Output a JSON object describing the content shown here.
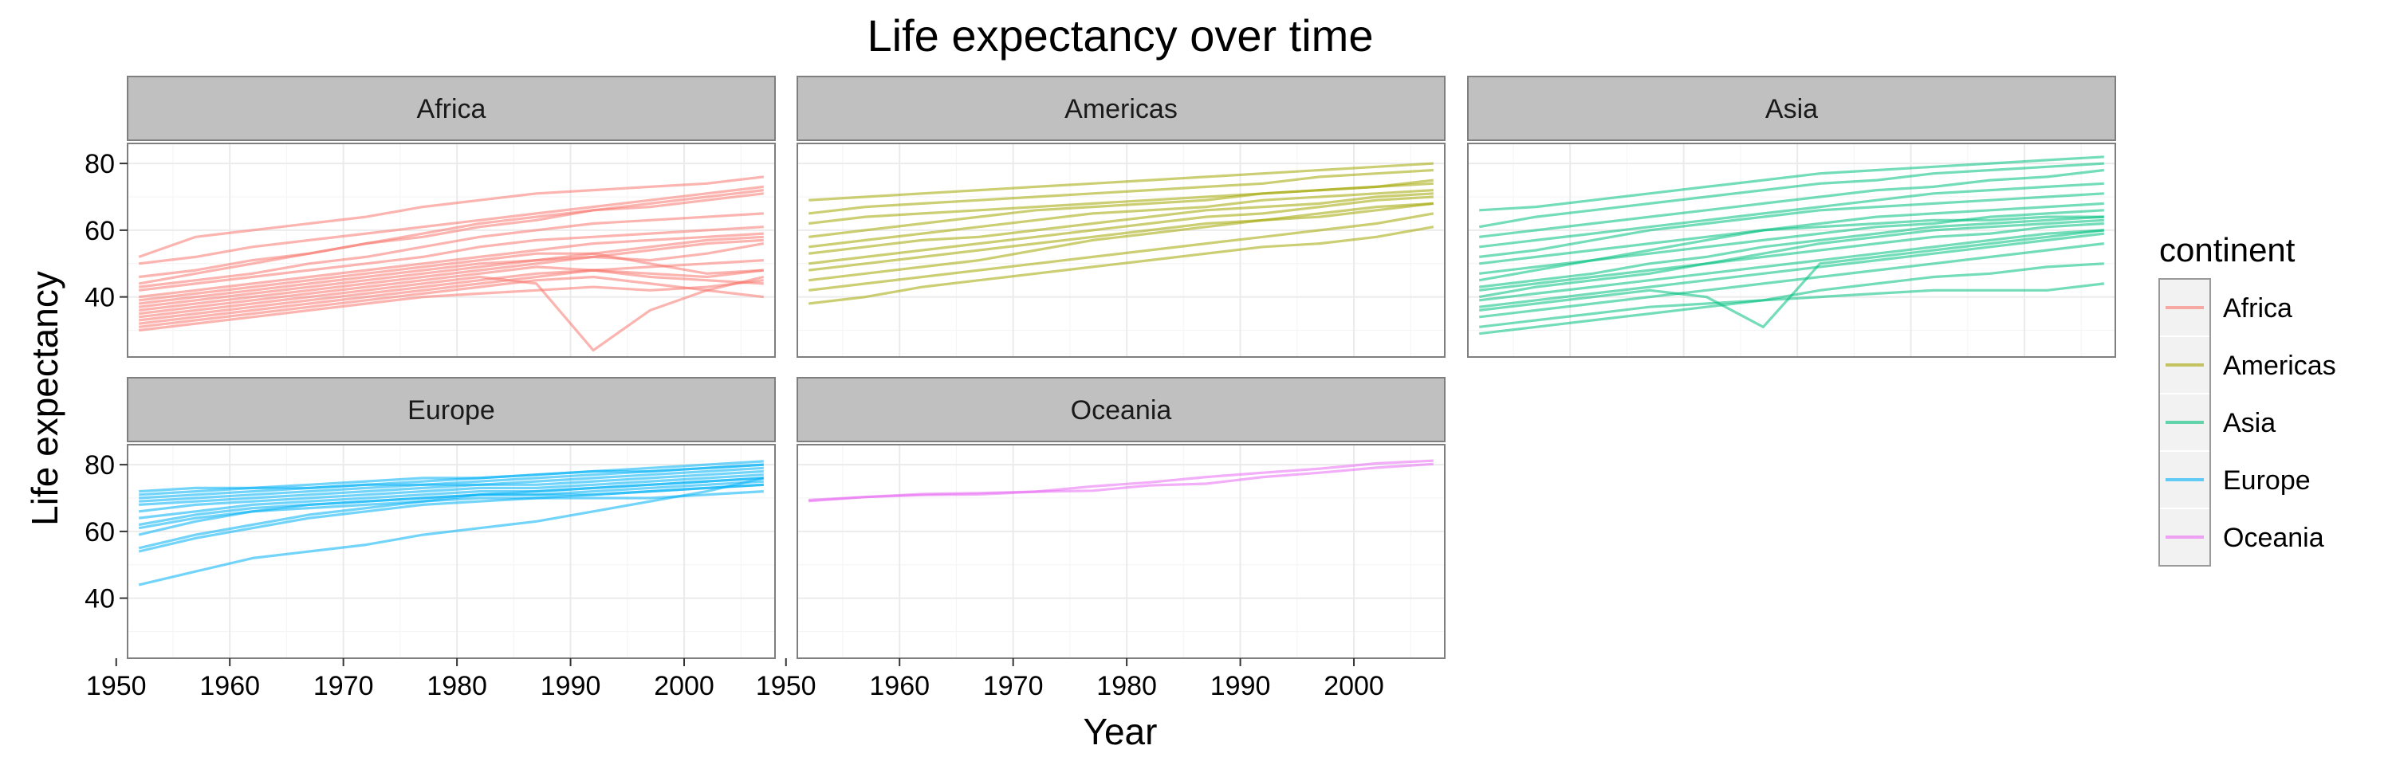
{
  "chart_data": {
    "type": "line",
    "title": "Life expectancy over time",
    "xlabel": "Year",
    "ylabel": "Life expectancy",
    "x": [
      1952,
      1957,
      1962,
      1967,
      1972,
      1977,
      1982,
      1987,
      1992,
      1997,
      2002,
      2007
    ],
    "xlim": [
      1951,
      2008
    ],
    "ylim": [
      22,
      86
    ],
    "x_ticks": [
      1950,
      1960,
      1970,
      1980,
      1990,
      2000
    ],
    "y_ticks": [
      40,
      60,
      80
    ],
    "grid": true,
    "facet_by": "continent",
    "legend": {
      "title": "continent",
      "position": "right",
      "entries": [
        "Africa",
        "Americas",
        "Asia",
        "Europe",
        "Oceania"
      ]
    },
    "colors": {
      "Africa": "#F8766D",
      "Americas": "#A3A500",
      "Asia": "#00BF7D",
      "Europe": "#00B0F6",
      "Oceania": "#E76BF3"
    },
    "panels": [
      {
        "continent": "Africa",
        "series": [
          {
            "values": [
              52,
              58,
              60,
              62,
              64,
              67,
              69,
              71,
              72,
              73,
              74,
              76
            ]
          },
          {
            "values": [
              50,
              52,
              55,
              57,
              59,
              61,
              63,
              65,
              67,
              69,
              71,
              73
            ]
          },
          {
            "values": [
              46,
              48,
              51,
              53,
              56,
              58,
              61,
              63,
              66,
              68,
              70,
              72
            ]
          },
          {
            "values": [
              44,
              47,
              50,
              53,
              56,
              59,
              62,
              64,
              66,
              67,
              69,
              71
            ]
          },
          {
            "values": [
              43,
              45,
              47,
              50,
              52,
              55,
              58,
              60,
              62,
              63,
              64,
              65
            ]
          },
          {
            "values": [
              42,
              44,
              46,
              48,
              50,
              52,
              55,
              57,
              58,
              59,
              60,
              61
            ]
          },
          {
            "values": [
              40,
              42,
              44,
              46,
              48,
              50,
              52,
              54,
              56,
              57,
              58,
              59
            ]
          },
          {
            "values": [
              39,
              41,
              43,
              45,
              47,
              49,
              51,
              53,
              53,
              50,
              47,
              48
            ]
          },
          {
            "values": [
              38,
              40,
              42,
              44,
              46,
              48,
              50,
              51,
              52,
              51,
              53,
              56
            ]
          },
          {
            "values": [
              37,
              39,
              41,
              43,
              45,
              47,
              49,
              51,
              53,
              55,
              57,
              58
            ]
          },
          {
            "values": [
              36,
              38,
              40,
              42,
              44,
              46,
              48,
              50,
              52,
              54,
              56,
              57
            ]
          },
          {
            "values": [
              35,
              37,
              39,
              41,
              43,
              45,
              47,
              49,
              48,
              46,
              45,
              44
            ]
          },
          {
            "values": [
              34,
              36,
              38,
              40,
              42,
              44,
              46,
              44,
              24,
              36,
              42,
              46
            ]
          },
          {
            "values": [
              33,
              35,
              37,
              39,
              41,
              43,
              45,
              47,
              48,
              47,
              46,
              48
            ]
          },
          {
            "values": [
              32,
              34,
              36,
              38,
              40,
              42,
              44,
              46,
              48,
              49,
              50,
              51
            ]
          },
          {
            "values": [
              31,
              33,
              35,
              37,
              39,
              41,
              43,
              45,
              46,
              44,
              42,
              40
            ]
          },
          {
            "values": [
              30,
              32,
              34,
              36,
              38,
              40,
              41,
              42,
              43,
              42,
              43,
              45
            ]
          }
        ]
      },
      {
        "continent": "Americas",
        "series": [
          {
            "values": [
              69,
              70,
              71,
              72,
              73,
              74,
              75,
              76,
              77,
              78,
              79,
              80
            ]
          },
          {
            "values": [
              65,
              67,
              68,
              69,
              70,
              71,
              72,
              73,
              74,
              76,
              77,
              78
            ]
          },
          {
            "values": [
              62,
              64,
              65,
              66,
              67,
              68,
              69,
              70,
              71,
              72,
              73,
              74
            ]
          },
          {
            "values": [
              58,
              60,
              62,
              64,
              66,
              67,
              68,
              69,
              71,
              72,
              73,
              75
            ]
          },
          {
            "values": [
              55,
              57,
              59,
              61,
              63,
              65,
              66,
              67,
              69,
              70,
              71,
              72
            ]
          },
          {
            "values": [
              53,
              55,
              57,
              58,
              60,
              62,
              64,
              66,
              67,
              68,
              70,
              71
            ]
          },
          {
            "values": [
              50,
              52,
              54,
              56,
              58,
              60,
              62,
              64,
              65,
              67,
              69,
              70
            ]
          },
          {
            "values": [
              48,
              50,
              52,
              54,
              56,
              58,
              60,
              62,
              63,
              64,
              66,
              68
            ]
          },
          {
            "values": [
              45,
              47,
              49,
              51,
              54,
              57,
              59,
              61,
              63,
              65,
              67,
              68
            ]
          },
          {
            "values": [
              42,
              44,
              46,
              48,
              50,
              52,
              54,
              56,
              58,
              60,
              62,
              65
            ]
          },
          {
            "values": [
              38,
              40,
              43,
              45,
              47,
              49,
              51,
              53,
              55,
              56,
              58,
              61
            ]
          }
        ]
      },
      {
        "continent": "Asia",
        "series": [
          {
            "values": [
              66,
              67,
              69,
              71,
              73,
              75,
              77,
              78,
              79,
              80,
              81,
              82
            ]
          },
          {
            "values": [
              61,
              64,
              66,
              68,
              70,
              72,
              74,
              75,
              77,
              78,
              79,
              80
            ]
          },
          {
            "values": [
              58,
              60,
              62,
              64,
              66,
              68,
              70,
              72,
              73,
              75,
              76,
              78
            ]
          },
          {
            "values": [
              55,
              57,
              59,
              61,
              63,
              65,
              67,
              69,
              71,
              72,
              73,
              74
            ]
          },
          {
            "values": [
              52,
              54,
              57,
              60,
              62,
              64,
              66,
              67,
              68,
              69,
              70,
              71
            ]
          },
          {
            "values": [
              50,
              52,
              54,
              56,
              58,
              60,
              62,
              64,
              65,
              66,
              67,
              68
            ]
          },
          {
            "values": [
              47,
              49,
              51,
              53,
              55,
              57,
              59,
              61,
              62,
              64,
              65,
              66
            ]
          },
          {
            "values": [
              45,
              48,
              51,
              54,
              57,
              60,
              61,
              62,
              63,
              63,
              64,
              64
            ]
          },
          {
            "values": [
              43,
              45,
              47,
              50,
              52,
              55,
              57,
              59,
              61,
              62,
              63,
              64
            ]
          },
          {
            "values": [
              42,
              44,
              46,
              48,
              50,
              52,
              54,
              56,
              58,
              59,
              61,
              62
            ]
          },
          {
            "values": [
              40,
              43,
              45,
              47,
              50,
              53,
              56,
              58,
              60,
              61,
              62,
              63
            ]
          },
          {
            "values": [
              39,
              41,
              43,
              45,
              47,
              49,
              51,
              53,
              55,
              57,
              59,
              60
            ]
          },
          {
            "values": [
              37,
              39,
              41,
              43,
              45,
              47,
              49,
              51,
              53,
              55,
              57,
              59
            ]
          },
          {
            "values": [
              36,
              38,
              40,
              42,
              40,
              31,
              50,
              52,
              54,
              56,
              58,
              60
            ]
          },
          {
            "values": [
              34,
              36,
              38,
              40,
              42,
              44,
              46,
              48,
              50,
              52,
              54,
              56
            ]
          },
          {
            "values": [
              31,
              33,
              35,
              37,
              38,
              39,
              40,
              41,
              42,
              42,
              42,
              44
            ]
          },
          {
            "values": [
              29,
              31,
              33,
              35,
              37,
              39,
              42,
              44,
              46,
              47,
              49,
              50
            ]
          }
        ]
      },
      {
        "continent": "Europe",
        "series": [
          {
            "values": [
              72,
              73,
              73,
              74,
              75,
              76,
              76,
              77,
              78,
              79,
              80,
              81
            ]
          },
          {
            "values": [
              71,
              72,
              73,
              73,
              74,
              75,
              76,
              77,
              78,
              78,
              79,
              80
            ]
          },
          {
            "values": [
              70,
              71,
              72,
              73,
              74,
              74,
              75,
              76,
              77,
              78,
              79,
              80
            ]
          },
          {
            "values": [
              69,
              70,
              71,
              72,
              73,
              74,
              74,
              75,
              76,
              77,
              78,
              79
            ]
          },
          {
            "values": [
              68,
              69,
              70,
              71,
              72,
              73,
              74,
              74,
              75,
              76,
              77,
              78
            ]
          },
          {
            "values": [
              66,
              68,
              69,
              70,
              71,
              72,
              73,
              73,
              74,
              75,
              76,
              77
            ]
          },
          {
            "values": [
              64,
              66,
              68,
              69,
              70,
              71,
              72,
              72,
              73,
              74,
              75,
              76
            ]
          },
          {
            "values": [
              62,
              65,
              67,
              68,
              69,
              70,
              71,
              71,
              71,
              72,
              73,
              74
            ]
          },
          {
            "values": [
              61,
              64,
              66,
              67,
              68,
              69,
              70,
              70,
              70,
              70,
              71,
              72
            ]
          },
          {
            "values": [
              59,
              63,
              66,
              68,
              69,
              70,
              71,
              72,
              73,
              74,
              75,
              76
            ]
          },
          {
            "values": [
              55,
              59,
              62,
              65,
              67,
              69,
              71,
              71,
              72,
              73,
              74,
              75
            ]
          },
          {
            "values": [
              54,
              58,
              61,
              64,
              66,
              68,
              69,
              70,
              71,
              72,
              73,
              74
            ]
          },
          {
            "values": [
              44,
              48,
              52,
              54,
              56,
              59,
              61,
              63,
              66,
              69,
              72,
              76
            ]
          }
        ]
      },
      {
        "continent": "Oceania",
        "series": [
          {
            "values": [
              69.1,
              70.3,
              70.9,
              71.1,
              71.9,
              73.5,
              74.7,
              76.3,
              77.6,
              78.8,
              80.4,
              81.2
            ]
          },
          {
            "values": [
              69.4,
              70.3,
              71.2,
              71.5,
              71.9,
              72.2,
              73.8,
              74.3,
              76.3,
              77.6,
              79.1,
              80.2
            ]
          }
        ]
      }
    ]
  }
}
